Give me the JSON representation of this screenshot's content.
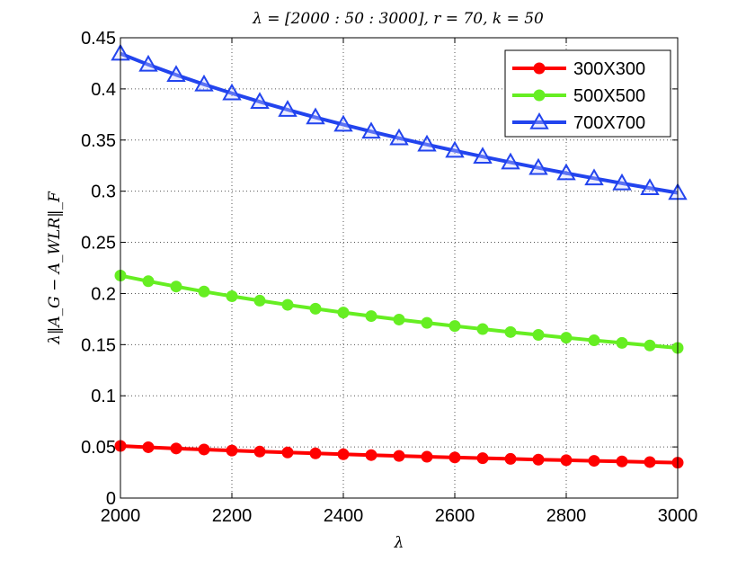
{
  "chart_data": {
    "type": "line",
    "title": "λ = [2000 : 50 : 3000], r = 70, k = 50",
    "xlabel": "λ",
    "ylabel": "λ‖A_G − A_WLR‖_F",
    "xlim": [
      2000,
      3000
    ],
    "ylim": [
      0,
      0.45
    ],
    "grid": true,
    "legend_position": "top-right",
    "x_ticks": [
      2000,
      2200,
      2400,
      2600,
      2800,
      3000
    ],
    "x_tick_labels": [
      "2000",
      "2200",
      "2400",
      "2600",
      "2800",
      "3000"
    ],
    "y_ticks": [
      0,
      0.05,
      0.1,
      0.15,
      0.2,
      0.25,
      0.3,
      0.35,
      0.4,
      0.45
    ],
    "y_tick_labels": [
      "0",
      "0.05",
      "0.1",
      "0.15",
      "0.2",
      "0.25",
      "0.3",
      "0.35",
      "0.4",
      "0.45"
    ],
    "x": [
      2000,
      2050,
      2100,
      2150,
      2200,
      2250,
      2300,
      2350,
      2400,
      2450,
      2500,
      2550,
      2600,
      2650,
      2700,
      2750,
      2800,
      2850,
      2900,
      2950,
      3000
    ],
    "series": [
      {
        "name": "300X300",
        "color": "#ff0000",
        "marker": "circle",
        "values": [
          0.051,
          0.0497,
          0.0485,
          0.0475,
          0.0465,
          0.0455,
          0.0446,
          0.0437,
          0.0428,
          0.042,
          0.0412,
          0.0404,
          0.0397,
          0.039,
          0.0383,
          0.0376,
          0.037,
          0.0364,
          0.0358,
          0.0352,
          0.0346
        ]
      },
      {
        "name": "500X500",
        "color": "#66ee22",
        "marker": "circle",
        "values": [
          0.2175,
          0.212,
          0.2068,
          0.2019,
          0.1973,
          0.193,
          0.1889,
          0.1851,
          0.1814,
          0.1779,
          0.1745,
          0.1713,
          0.1682,
          0.1652,
          0.1623,
          0.1595,
          0.1568,
          0.1542,
          0.1517,
          0.1492,
          0.1468
        ]
      },
      {
        "name": "700X700",
        "color": "#2244ee",
        "marker": "triangle",
        "values": [
          0.4345,
          0.4237,
          0.4137,
          0.4044,
          0.3957,
          0.3874,
          0.3796,
          0.3722,
          0.3651,
          0.3583,
          0.3518,
          0.3456,
          0.3396,
          0.3338,
          0.3282,
          0.3228,
          0.3176,
          0.3126,
          0.3077,
          0.303,
          0.2984
        ]
      }
    ]
  }
}
